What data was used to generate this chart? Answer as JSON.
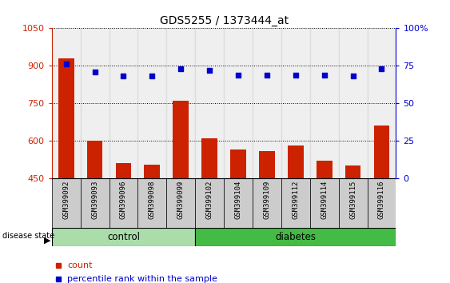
{
  "title": "GDS5255 / 1373444_at",
  "samples": [
    "GSM399092",
    "GSM399093",
    "GSM399096",
    "GSM399098",
    "GSM399099",
    "GSM399102",
    "GSM399104",
    "GSM399109",
    "GSM399112",
    "GSM399114",
    "GSM399115",
    "GSM399116"
  ],
  "counts": [
    930,
    600,
    510,
    505,
    760,
    610,
    565,
    560,
    580,
    520,
    500,
    660
  ],
  "percentiles": [
    76,
    71,
    68,
    68,
    73,
    72,
    69,
    69,
    69,
    69,
    68,
    73
  ],
  "ylim_left": [
    450,
    1050
  ],
  "ylim_right": [
    0,
    100
  ],
  "yticks_left": [
    450,
    600,
    750,
    900,
    1050
  ],
  "yticks_right": [
    0,
    25,
    50,
    75,
    100
  ],
  "bar_color": "#cc2200",
  "dot_color": "#0000cc",
  "control_color": "#aaddaa",
  "diabetes_color": "#44bb44",
  "right_axis_color": "#0000cc",
  "tick_label_color": "#cc2200",
  "n_control": 5,
  "n_diabetes": 7,
  "xticklabel_fontsize": 6.5,
  "title_fontsize": 10
}
